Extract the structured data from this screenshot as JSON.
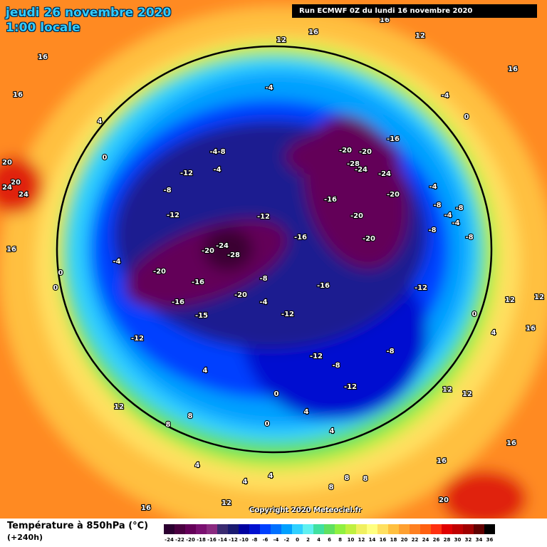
{
  "header": {
    "date": "jeudi 26 novembre 2020",
    "time": "1:00 locale",
    "run": "Run ECMWF 0Z du lundi 16 novembre 2020"
  },
  "copyright": "Copyright 2020 Meteociel.fr",
  "legend": {
    "title": "Température à 850hPa (°C)",
    "subtitle": "(+240h)",
    "ticks": [
      -24,
      -22,
      -20,
      -18,
      -16,
      -14,
      -12,
      -10,
      -8,
      -6,
      -4,
      -2,
      0,
      2,
      4,
      6,
      8,
      10,
      12,
      14,
      16,
      18,
      20,
      22,
      24,
      26,
      28,
      30,
      32,
      34,
      36
    ],
    "colors": [
      "#2b0030",
      "#4a0040",
      "#640058",
      "#7a1070",
      "#8a2a80",
      "#3a2a70",
      "#1a1a70",
      "#0000a0",
      "#0010d0",
      "#0040ff",
      "#0070ff",
      "#00a0ff",
      "#30d0ff",
      "#60f0f0",
      "#40e0a0",
      "#60e060",
      "#90f040",
      "#c0f040",
      "#f0f060",
      "#ffff80",
      "#ffe060",
      "#ffc040",
      "#ffa030",
      "#ff8020",
      "#ff6010",
      "#ff3010",
      "#e00000",
      "#c00000",
      "#a00000",
      "#600000",
      "#000000"
    ]
  },
  "map_labels": [
    16,
    12,
    16,
    16,
    4,
    -4,
    0,
    -4,
    -8,
    -12,
    -4,
    -8,
    -12,
    -12,
    -24,
    -28,
    -20,
    -20,
    -16,
    -4,
    -20,
    -8,
    -16,
    -16,
    -20,
    -20,
    -28,
    -24,
    -24,
    -16,
    -20,
    -20,
    -20,
    -16,
    -12,
    -12,
    -4,
    -16,
    -15,
    -12,
    -12,
    -8,
    -8,
    -12,
    -4,
    -8,
    -4,
    -8,
    -4,
    -8,
    -8,
    0,
    -4,
    12,
    16,
    0,
    4,
    12,
    12,
    16,
    16,
    20,
    16,
    20,
    20,
    24,
    24,
    0,
    0,
    12,
    8,
    8,
    4,
    0,
    0,
    4,
    4,
    12,
    16,
    4,
    4,
    4,
    8,
    8,
    8,
    16,
    12,
    16,
    12
  ]
}
